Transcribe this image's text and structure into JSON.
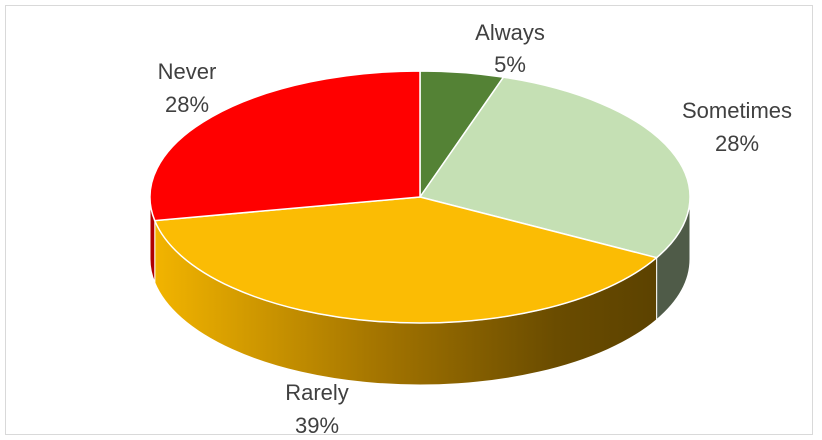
{
  "chart_data": {
    "type": "pie",
    "style": "3d",
    "slices": [
      {
        "label": "Always",
        "value": 5,
        "percent_label": "5%",
        "color": "#548235",
        "side_color": "#3b5d25"
      },
      {
        "label": "Sometimes",
        "value": 28,
        "percent_label": "28%",
        "color": "#c5e0b4",
        "side_color": "#4f5b48"
      },
      {
        "label": "Rarely",
        "value": 39,
        "percent_label": "39%",
        "color": "#fbbc04",
        "side_color": "#d9a200"
      },
      {
        "label": "Never",
        "value": 28,
        "percent_label": "28%",
        "color": "#ff0000",
        "side_color": "#b00000"
      }
    ],
    "legend": "none"
  }
}
